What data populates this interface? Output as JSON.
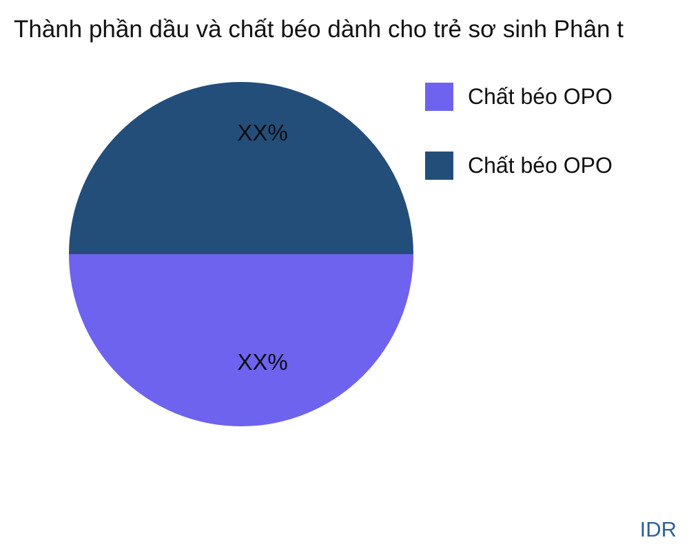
{
  "title": "Thành phần dầu và chất béo dành cho trẻ sơ sinh Phân t",
  "watermark": "IDR",
  "colors": {
    "slice_purple": "#6e63ee",
    "slice_dark_blue": "#234e79",
    "watermark_text": "#2e6094",
    "background": "#ffffff",
    "text": "#111111"
  },
  "legend": {
    "position": "right",
    "items": [
      {
        "label": "Chất béo OPO",
        "color": "#6e63ee"
      },
      {
        "label": "Chất béo OPO",
        "color": "#234e79"
      }
    ]
  },
  "chart_data": {
    "type": "pie",
    "title": "Thành phần dầu và chất béo dành cho trẻ sơ sinh Phân t",
    "labels": [
      "Chất béo OPO",
      "Chất béo OPO"
    ],
    "values": [
      50,
      50
    ],
    "value_labels": [
      "XX%",
      "XX%"
    ],
    "colors": [
      "#6e63ee",
      "#234e79"
    ],
    "slice_positions": [
      "bottom half",
      "top half"
    ],
    "legend_position": "right",
    "grid": false
  }
}
